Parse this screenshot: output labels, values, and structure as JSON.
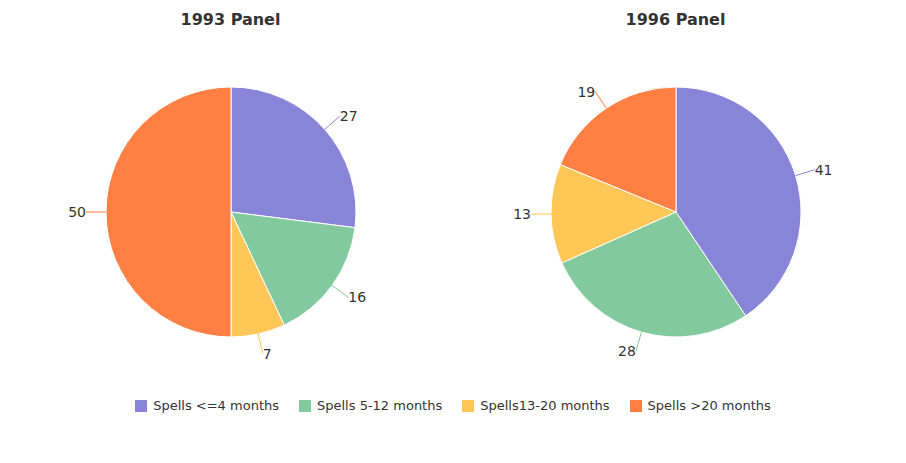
{
  "chart_data": {
    "type": "pie",
    "categories": [
      "Spells <=4 months",
      "Spells 5-12 months",
      "Spells13-20 months",
      "Spells >20 months"
    ],
    "series": [
      {
        "name": "1993 Panel",
        "values": [
          27,
          16,
          7,
          50
        ]
      },
      {
        "name": "1996 Panel",
        "values": [
          41,
          28,
          13,
          19
        ]
      }
    ],
    "colors": [
      "#8884d8",
      "#82ca9d",
      "#ffc658",
      "#ff8042"
    ],
    "data_labels": true,
    "legend": "bottom"
  }
}
